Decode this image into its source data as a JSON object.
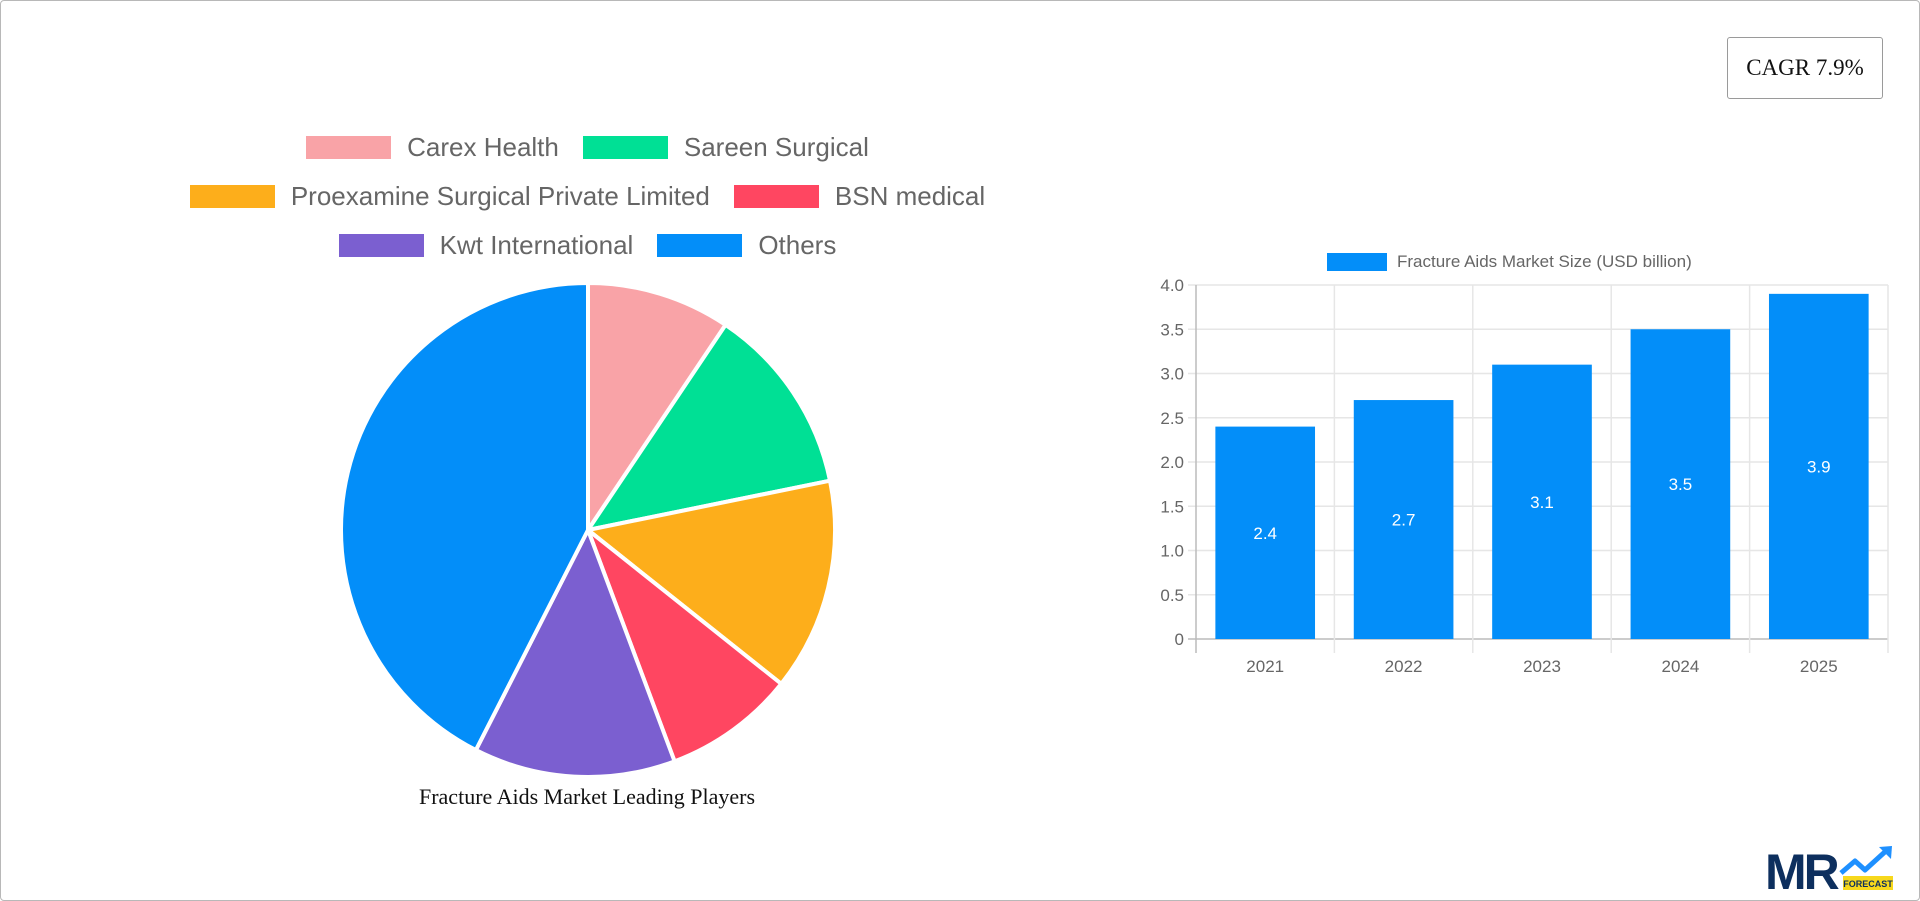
{
  "cagr": {
    "label": "CAGR 7.9%"
  },
  "pie": {
    "caption": "Fracture Aids Market Leading Players",
    "legend": [
      {
        "label": "Carex Health",
        "color": "#f9a3a7"
      },
      {
        "label": "Sareen Surgical",
        "color": "#00e095"
      },
      {
        "label": "Proexamine Surgical Private Limited",
        "color": "#fdae1b"
      },
      {
        "label": "BSN medical",
        "color": "#ff4661"
      },
      {
        "label": "Kwt International",
        "color": "#7b5fd0"
      },
      {
        "label": "Others",
        "color": "#038ef9"
      }
    ]
  },
  "bar": {
    "legend_label": "Fracture Aids Market Size (USD billion)",
    "color": "#038ef9"
  },
  "logo": {
    "text": "MR",
    "sub": "FORECAST"
  },
  "chart_data": [
    {
      "type": "pie",
      "title": "Fracture Aids Market Leading Players",
      "categories": [
        "Carex Health",
        "Sareen Surgical",
        "Proexamine Surgical Private Limited",
        "BSN medical",
        "Kwt International",
        "Others"
      ],
      "values": [
        9.4,
        12.4,
        13.9,
        8.6,
        13.2,
        42.5
      ],
      "unit": "% share (estimated from slice angles)",
      "colors": [
        "#f9a3a7",
        "#00e095",
        "#fdae1b",
        "#ff4661",
        "#7b5fd0",
        "#038ef9"
      ],
      "legend_position": "top"
    },
    {
      "type": "bar",
      "title": "",
      "categories": [
        "2021",
        "2022",
        "2023",
        "2024",
        "2025"
      ],
      "series": [
        {
          "name": "Fracture Aids Market Size (USD billion)",
          "values": [
            2.4,
            2.7,
            3.1,
            3.5,
            3.9
          ]
        }
      ],
      "xlabel": "",
      "ylabel": "",
      "ylim": [
        0,
        4.0
      ],
      "yticks": [
        "0",
        "0.5",
        "1.0",
        "1.5",
        "2.0",
        "2.5",
        "3.0",
        "3.5",
        "4.0"
      ],
      "grid": true,
      "data_labels": true,
      "legend_position": "top",
      "annotation": "CAGR 7.9%"
    }
  ]
}
